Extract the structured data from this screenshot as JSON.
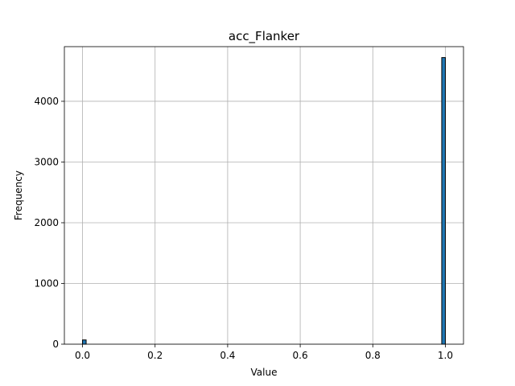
{
  "chart_data": {
    "type": "bar",
    "title": "acc_Flanker",
    "xlabel": "Value",
    "ylabel": "Frequency",
    "xlim": [
      -0.05,
      1.05
    ],
    "ylim": [
      0,
      4900
    ],
    "xticks": [
      "0.0",
      "0.2",
      "0.4",
      "0.6",
      "0.8",
      "1.0"
    ],
    "yticks": [
      "0",
      "1000",
      "2000",
      "3000",
      "4000"
    ],
    "grid": true,
    "bar_color": "#1f77b4",
    "edge_color": "#000000",
    "bins": [
      {
        "x0": 0.0,
        "x1": 0.01,
        "count": 70
      },
      {
        "x0": 0.99,
        "x1": 1.0,
        "count": 4720
      }
    ]
  }
}
